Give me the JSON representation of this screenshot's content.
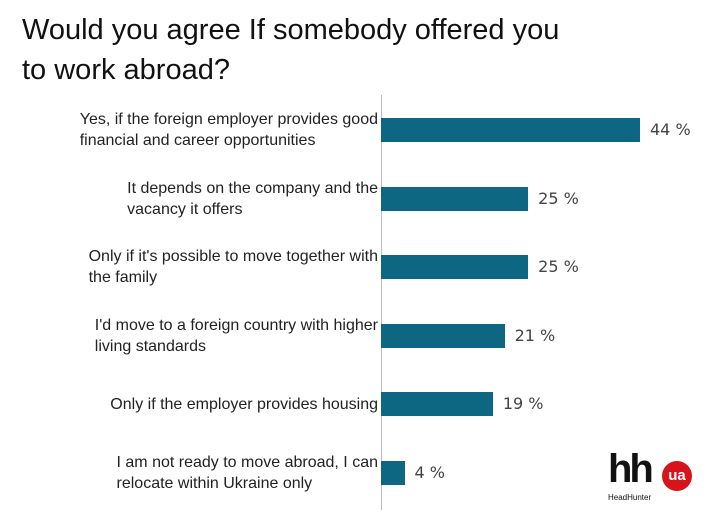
{
  "chart_data": {
    "type": "bar",
    "orientation": "horizontal",
    "title": "Would you agree If somebody offered you\nto work abroad?",
    "categories": [
      "Yes, if the foreign employer provides good\nfinancial and career opportunities",
      "It depends on the company and the\nvacancy it offers",
      "Only if it's possible to move together with\nthe family",
      "I'd move to a foreign country with higher\nliving standards",
      "Only if the employer provides housing",
      "I am not ready to move abroad, I can\nrelocate within Ukraine only"
    ],
    "values": [
      44,
      25,
      25,
      21,
      19,
      4
    ],
    "value_labels": [
      "44 %",
      "25 %",
      "25 %",
      "21 %",
      "19 %",
      "4 %"
    ],
    "color": "#0d6682"
  },
  "logo": {
    "mark": "hh",
    "badge": "ua",
    "name": "HeadHunter"
  }
}
